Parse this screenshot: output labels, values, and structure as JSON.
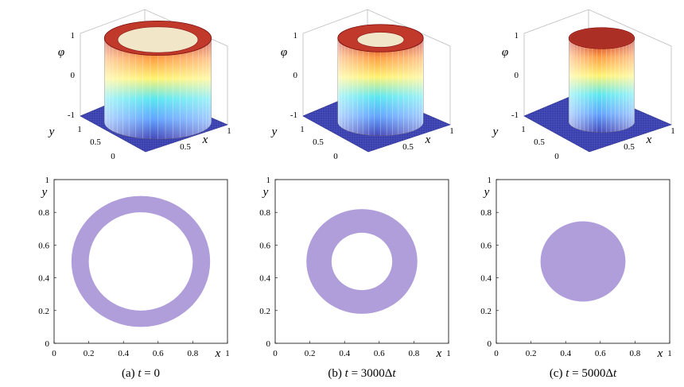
{
  "chart_data": [
    {
      "type": "surface",
      "panel": "a",
      "zlabel": "φ",
      "xlabel": "x",
      "ylabel": "y",
      "zlim": [
        -1,
        1
      ],
      "zticks": [
        "1",
        "0",
        "-1"
      ],
      "xticks": [
        "0.5",
        "1"
      ],
      "yticks": [
        "0",
        "0.5",
        "1"
      ],
      "annulus": {
        "center": [
          0.5,
          0.5
        ],
        "outer_radius": 0.4,
        "inner_radius": 0.3
      }
    },
    {
      "type": "surface",
      "panel": "b",
      "zlabel": "φ",
      "xlabel": "x",
      "ylabel": "y",
      "zlim": [
        -1,
        1
      ],
      "zticks": [
        "1",
        "0",
        "-1"
      ],
      "xticks": [
        "0.5",
        "1"
      ],
      "yticks": [
        "0",
        "0.5",
        "1"
      ],
      "annulus": {
        "center": [
          0.5,
          0.5
        ],
        "outer_radius": 0.32,
        "inner_radius": 0.175
      }
    },
    {
      "type": "surface",
      "panel": "c",
      "zlabel": "φ",
      "xlabel": "x",
      "ylabel": "y",
      "zlim": [
        -1,
        1
      ],
      "zticks": [
        "1",
        "0",
        "-1"
      ],
      "xticks": [
        "0.5",
        "1"
      ],
      "yticks": [
        "0",
        "0.5",
        "1"
      ],
      "annulus": {
        "center": [
          0.5,
          0.5
        ],
        "outer_radius": 0.245,
        "inner_radius": 0
      }
    },
    {
      "type": "contour",
      "panel": "a",
      "caption": "(a) t = 0",
      "xlabel": "x",
      "ylabel": "y",
      "xlim": [
        0,
        1
      ],
      "ylim": [
        0,
        1
      ],
      "xticks": [
        "0",
        "0.2",
        "0.4",
        "0.6",
        "0.8",
        "1"
      ],
      "yticks": [
        "0",
        "0.2",
        "0.4",
        "0.6",
        "0.8",
        "1"
      ],
      "annulus": {
        "center": [
          0.5,
          0.5
        ],
        "outer_radius": 0.4,
        "inner_radius": 0.3
      },
      "fill_color": "#b09edb"
    },
    {
      "type": "contour",
      "panel": "b",
      "caption": "(b) t = 3000Δt",
      "xlabel": "x",
      "ylabel": "y",
      "xlim": [
        0,
        1
      ],
      "ylim": [
        0,
        1
      ],
      "xticks": [
        "0",
        "0.2",
        "0.4",
        "0.6",
        "0.8",
        "1"
      ],
      "yticks": [
        "0",
        "0.2",
        "0.4",
        "0.6",
        "0.8",
        "1"
      ],
      "annulus": {
        "center": [
          0.5,
          0.5
        ],
        "outer_radius": 0.32,
        "inner_radius": 0.175
      },
      "fill_color": "#b09edb"
    },
    {
      "type": "contour",
      "panel": "c",
      "caption": "(c) t = 5000Δt",
      "xlabel": "x",
      "ylabel": "y",
      "xlim": [
        0,
        1
      ],
      "ylim": [
        0,
        1
      ],
      "xticks": [
        "0",
        "0.2",
        "0.4",
        "0.6",
        "0.8",
        "1"
      ],
      "yticks": [
        "0",
        "0.2",
        "0.4",
        "0.6",
        "0.8",
        "1"
      ],
      "annulus": {
        "center": [
          0.5,
          0.5
        ],
        "outer_radius": 0.245,
        "inner_radius": 0
      },
      "fill_color": "#b09edb"
    }
  ],
  "captions": {
    "a": {
      "prefix": "(a) ",
      "t": "t",
      "rest": " = 0"
    },
    "b": {
      "prefix": "(b) ",
      "t": "t",
      "rest": " = 3000Δ",
      "t2": "t"
    },
    "c": {
      "prefix": "(c) ",
      "t": "t",
      "rest": " = 5000Δ",
      "t2": "t"
    }
  },
  "colors": {
    "surface_base": "#3a3fae",
    "disk": "#b09edb"
  }
}
